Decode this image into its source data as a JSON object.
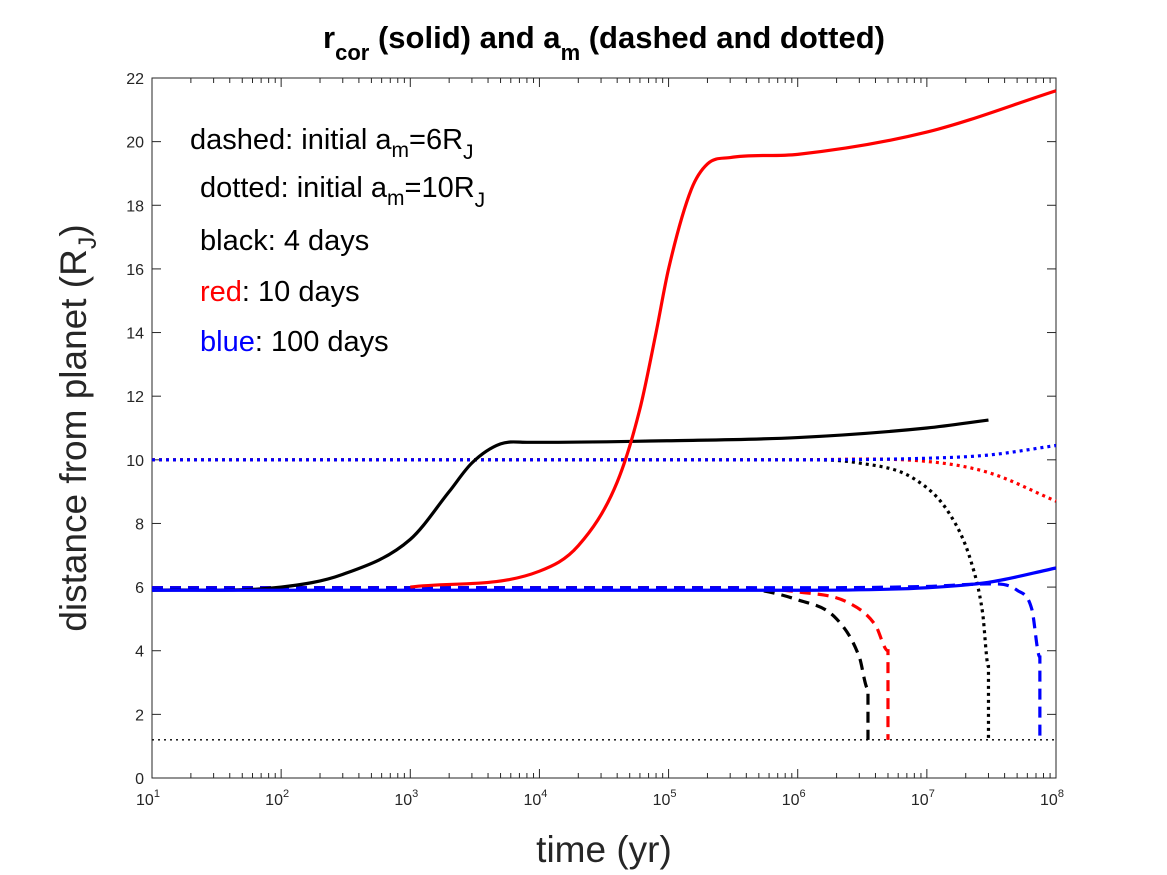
{
  "chart_data": {
    "type": "line",
    "title": {
      "r": "r",
      "r_sub": "cor",
      "mid": " (solid) and a",
      "a_sub": "m",
      "end": " (dashed and dotted)"
    },
    "xlabel": "time (yr)",
    "ylabel": {
      "main": "distance from planet (R",
      "sub": "J",
      "end": ")"
    },
    "xscale": "log",
    "xlim": [
      10,
      100000000
    ],
    "ylim": [
      0,
      22
    ],
    "x_tick_exponents": [
      1,
      2,
      3,
      4,
      5,
      6,
      7,
      8
    ],
    "x_tick_base": "10",
    "y_ticks": [
      0,
      2,
      4,
      6,
      8,
      10,
      12,
      14,
      16,
      18,
      20,
      22
    ],
    "annotations": {
      "dashed": {
        "pre": "dashed: initial a",
        "sub1": "m",
        "mid": "=6R",
        "sub2": "J"
      },
      "dotted": {
        "pre": "dotted: initial a",
        "sub1": "m",
        "mid": "=10R",
        "sub2": "J"
      },
      "black": {
        "label": "black: 4 days"
      },
      "red": {
        "word": "red",
        "rest": ": 10 days"
      },
      "blue": {
        "word": "blue",
        "rest": ": 100 days"
      }
    },
    "colors": {
      "black": "#000000",
      "red": "#ff0000",
      "blue": "#0000ff"
    },
    "series": [
      {
        "name": "r_cor 4 days",
        "color": "#000000",
        "style": "solid",
        "x": [
          10,
          100,
          300,
          1000,
          2000,
          3000,
          5000,
          8000,
          10000,
          100000,
          1000000,
          10000000,
          30000000
        ],
        "y": [
          5.9,
          6.0,
          6.4,
          7.5,
          9.0,
          9.9,
          10.5,
          10.55,
          10.55,
          10.6,
          10.7,
          11.0,
          11.25
        ]
      },
      {
        "name": "r_cor 10 days",
        "color": "#ff0000",
        "style": "solid",
        "x": [
          1000,
          10000,
          20000,
          40000,
          60000,
          80000,
          100000,
          150000,
          200000,
          300000,
          1000000,
          10000000,
          100000000
        ],
        "y": [
          6.0,
          6.5,
          7.3,
          9.3,
          11.6,
          14.0,
          16.0,
          18.5,
          19.3,
          19.5,
          19.6,
          20.3,
          21.6
        ]
      },
      {
        "name": "r_cor 100 days",
        "color": "#0000ff",
        "style": "solid",
        "x": [
          10,
          1000000,
          10000000,
          30000000,
          100000000
        ],
        "y": [
          5.9,
          5.9,
          5.98,
          6.15,
          6.6
        ]
      },
      {
        "name": "a_m 6R_J 4 days",
        "color": "#000000",
        "style": "dashed",
        "x": [
          10,
          300000,
          1000000,
          2000000,
          3000000,
          3500000,
          3500000
        ],
        "y": [
          5.98,
          5.98,
          5.6,
          5.0,
          3.8,
          2.8,
          1.2
        ]
      },
      {
        "name": "a_m 6R_J 10 days",
        "color": "#ff0000",
        "style": "dashed",
        "x": [
          10,
          300000,
          1000000,
          2500000,
          4000000,
          5000000,
          5000000
        ],
        "y": [
          5.98,
          5.98,
          5.85,
          5.5,
          4.8,
          4.0,
          1.2
        ]
      },
      {
        "name": "a_m 6R_J 100 days",
        "color": "#0000ff",
        "style": "dashed",
        "x": [
          10,
          1000000,
          10000000,
          30000000,
          50000000,
          65000000,
          75000000,
          75000000
        ],
        "y": [
          5.98,
          5.98,
          6.02,
          6.1,
          5.9,
          5.3,
          3.8,
          1.2
        ]
      },
      {
        "name": "a_m 10R_J 4 days",
        "color": "#000000",
        "style": "dotted",
        "x": [
          10,
          1000000,
          3000000,
          8000000,
          15000000,
          22000000,
          27000000,
          30000000,
          30000000
        ],
        "y": [
          10,
          10,
          9.9,
          9.4,
          8.3,
          6.8,
          5.2,
          3.5,
          1.2
        ]
      },
      {
        "name": "a_m 10R_J 10 days",
        "color": "#ff0000",
        "style": "dotted",
        "x": [
          10,
          1000000,
          10000000,
          30000000,
          100000000
        ],
        "y": [
          10,
          10,
          9.95,
          9.6,
          8.7
        ]
      },
      {
        "name": "a_m 10R_J 100 days",
        "color": "#0000ff",
        "style": "dotted",
        "x": [
          10,
          1000000,
          10000000,
          30000000,
          100000000
        ],
        "y": [
          10,
          10,
          10.05,
          10.15,
          10.45
        ]
      },
      {
        "name": "planet surface reference",
        "color": "#000000",
        "style": "thin-dotted",
        "x": [
          10,
          100000000
        ],
        "y": [
          1.2,
          1.2
        ]
      }
    ]
  }
}
